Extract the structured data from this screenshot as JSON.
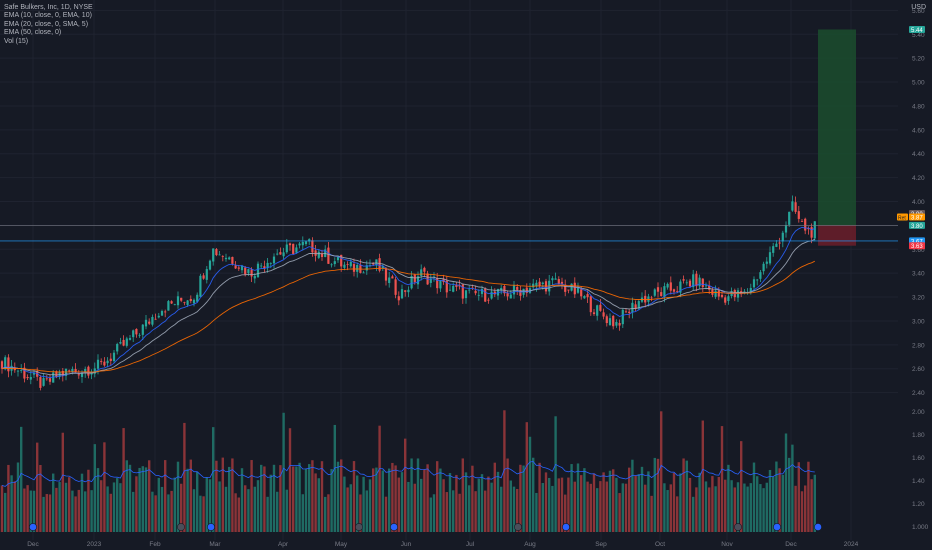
{
  "legend": {
    "title": "Safe Bulkers, Inc, 1D, NYSE",
    "lines": [
      "EMA (10, close, 0, EMA, 10)",
      "EMA (20, close, 0, SMA, 5)",
      "EMA (50, close, 0)",
      "Vol (15)"
    ]
  },
  "currency": "USD",
  "chart_data": {
    "type": "candlestick",
    "title": "Safe Bulkers, Inc, 1D, NYSE",
    "x_labels": [
      "Dec",
      "2023",
      "Feb",
      "Mar",
      "Apr",
      "May",
      "Jun",
      "Jul",
      "Aug",
      "Sep",
      "Oct",
      "Nov",
      "Dec",
      "2024"
    ],
    "price_axis": {
      "ticks": [
        "5.60",
        "5.40",
        "5.20",
        "5.00",
        "4.80",
        "4.60",
        "4.40",
        "4.20",
        "4.00",
        "3.80",
        "3.60",
        "3.40",
        "3.20",
        "3.00",
        "2.80",
        "2.60",
        "2.40"
      ],
      "range": [
        2.38,
        5.62
      ],
      "labels": [
        {
          "text": "5.44",
          "value": 5.44,
          "color": "#26a69a"
        },
        {
          "text": "3.90",
          "value": 3.9,
          "color": "#6b5a5a"
        },
        {
          "text": "3.87",
          "value": 3.87,
          "color": "#ff9800",
          "tag": "Ret"
        },
        {
          "text": "3.80",
          "value": 3.8,
          "color": "#26a69a"
        },
        {
          "text": "3.67",
          "value": 3.67,
          "color": "#2196f3"
        },
        {
          "text": "3.63",
          "value": 3.63,
          "color": "#f23645"
        }
      ]
    },
    "volume_axis": {
      "ticks": [
        "2.00",
        "1.80",
        "1.60",
        "1.40",
        "1.20",
        "1.000"
      ],
      "range": [
        0.95,
        2.1
      ],
      "ema_color": "#2962ff"
    },
    "close_by_month": [
      {
        "month": "Dec 2022",
        "close": 2.62
      },
      {
        "month": "Jan 2023",
        "close": 2.76
      },
      {
        "month": "Feb 2023",
        "close": 3.22
      },
      {
        "month": "Mar 2023",
        "close": 3.42
      },
      {
        "month": "Apr 2023",
        "close": 3.56
      },
      {
        "month": "May 2023",
        "close": 3.38
      },
      {
        "month": "Jun 2023",
        "close": 3.3
      },
      {
        "month": "Jul 2023",
        "close": 3.22
      },
      {
        "month": "Aug 2023",
        "close": 3.26
      },
      {
        "month": "Sep 2023",
        "close": 3.12
      },
      {
        "month": "Oct 2023",
        "close": 3.28
      },
      {
        "month": "Nov 2023",
        "close": 3.4
      },
      {
        "month": "Dec 2023",
        "close": 3.8
      }
    ],
    "key_points": {
      "low": 2.44,
      "high_apr": 3.67,
      "peak_dec": 4.0,
      "sep_low": 2.93
    },
    "levels": [
      {
        "name": "resistance",
        "value": 3.67,
        "color": "#2196f3"
      },
      {
        "name": "entry",
        "value": 3.8,
        "color": "#787b86"
      }
    ],
    "position": {
      "entry": 3.8,
      "target": 5.44,
      "stop": 3.63
    },
    "series_colors": {
      "up": "#26a69a",
      "down": "#ef5350",
      "ema10": "#2962ff",
      "ema20": "#9fa8b8",
      "ema50": "#ff6d00"
    }
  }
}
